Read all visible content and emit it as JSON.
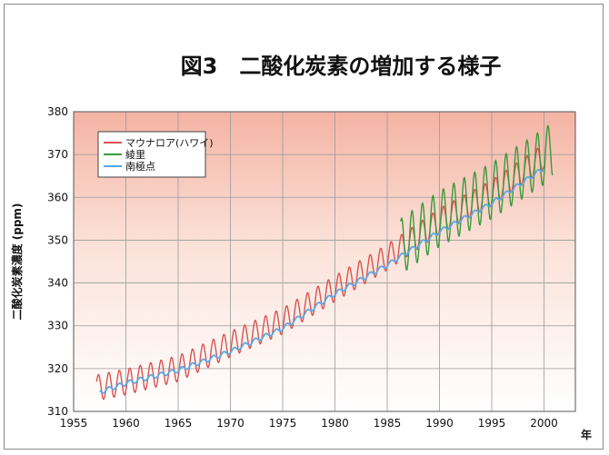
{
  "chart_data": {
    "type": "line",
    "title": "図3　二酸化炭素の増加する様子",
    "ylabel": "二酸化炭素濃度 (ppm)",
    "xlabel": "年",
    "xlim": [
      1955,
      2003
    ],
    "ylim": [
      310,
      380
    ],
    "x_ticks": [
      1955,
      1960,
      1965,
      1970,
      1975,
      1980,
      1985,
      1990,
      1995,
      2000
    ],
    "y_ticks": [
      310,
      320,
      330,
      340,
      350,
      360,
      370,
      380
    ],
    "grid": true,
    "legend_position": "top-left",
    "series": [
      {
        "name": "マウナロア(ハワイ)",
        "color": "#d9534f",
        "seasonal_amplitude": 3.0,
        "trend": [
          [
            1957.2,
            315.5
          ],
          [
            1960,
            316.9
          ],
          [
            1965,
            320.0
          ],
          [
            1970,
            325.7
          ],
          [
            1975,
            331.1
          ],
          [
            1980,
            338.7
          ],
          [
            1985,
            346.0
          ],
          [
            1990,
            354.4
          ],
          [
            1995,
            361.0
          ],
          [
            2000,
            369.5
          ]
        ]
      },
      {
        "name": "綾里",
        "color": "#3a9a3a",
        "seasonal_amplitude": 6.5,
        "trend": [
          [
            1986.3,
            348.5
          ],
          [
            1990,
            355.0
          ],
          [
            1995,
            361.5
          ],
          [
            2000,
            369.5
          ],
          [
            2000.8,
            371.0
          ]
        ]
      },
      {
        "name": "南極点",
        "color": "#5aa9e6",
        "seasonal_amplitude": 0.5,
        "trend": [
          [
            1957.5,
            314.5
          ],
          [
            1960,
            316.6
          ],
          [
            1965,
            319.6
          ],
          [
            1970,
            324.0
          ],
          [
            1975,
            329.4
          ],
          [
            1980,
            337.5
          ],
          [
            1985,
            344.2
          ],
          [
            1990,
            352.0
          ],
          [
            1995,
            358.6
          ],
          [
            2000,
            366.9
          ]
        ]
      }
    ]
  }
}
